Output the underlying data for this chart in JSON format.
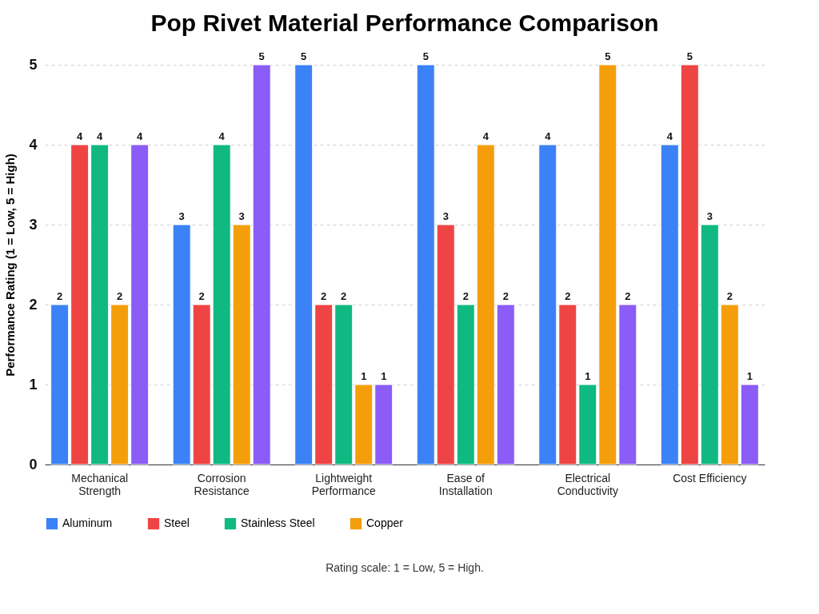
{
  "chart_data": {
    "type": "bar",
    "title": "Pop Rivet Material Performance Comparison",
    "ylabel": "Performance Rating (1 = Low, 5 = High)",
    "categories": [
      "Mechanical Strength",
      "Corrosion Resistance",
      "Lightweight Performance",
      "Ease of Installation",
      "Electrical Conductivity",
      "Cost Efficiency"
    ],
    "series": [
      {
        "name": "Aluminum",
        "color": "#3b82f6",
        "values": [
          2,
          3,
          5,
          5,
          4,
          4
        ]
      },
      {
        "name": "Steel",
        "color": "#ef4444",
        "values": [
          4,
          2,
          2,
          3,
          2,
          5
        ]
      },
      {
        "name": "Stainless Steel",
        "color": "#10b981",
        "values": [
          4,
          4,
          2,
          2,
          1,
          3
        ]
      },
      {
        "name": "Copper",
        "color": "#f59e0b",
        "values": [
          2,
          3,
          1,
          4,
          5,
          2
        ]
      },
      {
        "color": "#8b5cf6",
        "values": [
          4,
          5,
          1,
          2,
          2,
          1
        ]
      }
    ],
    "ylim": [
      0,
      5
    ],
    "yticks": [
      0,
      1,
      2,
      3,
      4,
      5
    ],
    "grid": "y",
    "legend": "bottom",
    "data_labels": true,
    "annotations": [
      "Rating scale: 1 = Low, 5 = High."
    ]
  }
}
